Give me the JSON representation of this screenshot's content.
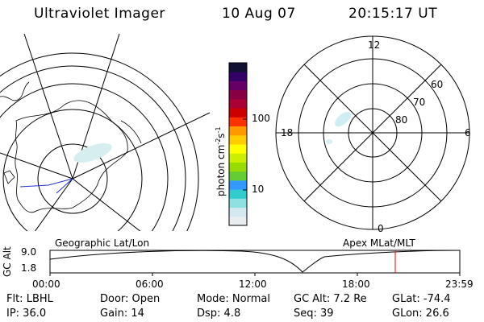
{
  "header": {
    "instrument": "Ultraviolet Imager",
    "date": "10 Aug 07",
    "time": "20:15:17 UT"
  },
  "colorbar": {
    "unit_label": "photon cm",
    "unit_exp1": "-2",
    "unit_mid": "s",
    "unit_exp2": "-1",
    "ticks": [
      "100",
      "10"
    ],
    "colors": [
      "#e9edf0",
      "#d4e8f0",
      "#8fe0e0",
      "#33cccc",
      "#3399ff",
      "#66cc33",
      "#99dd00",
      "#ccee00",
      "#ffff00",
      "#ffcc00",
      "#ff9900",
      "#ff3300",
      "#cc0000",
      "#aa0033",
      "#880044",
      "#660066",
      "#330066",
      "#111133"
    ]
  },
  "left_panel": {
    "label": "Geographic Lat/Lon"
  },
  "right_panel": {
    "label": "Apex MLat/MLT",
    "mlt_labels": [
      "12",
      "18",
      "6",
      "0"
    ],
    "lat_labels": [
      "60",
      "70",
      "80"
    ]
  },
  "altitude_plot": {
    "ylabel": "GC Alt",
    "yticks": [
      "9.0",
      "1.8"
    ],
    "xticks": [
      "00:00",
      "06:00",
      "12:00",
      "18:00",
      "23:59"
    ]
  },
  "status": {
    "filter": "Flt: LBHL",
    "door": "Door: Open",
    "mode": "Mode: Normal",
    "gc_alt": "GC Alt: 7.2 Re",
    "glat": "GLat: -74.4",
    "ip": "IP: 36.0",
    "gain": "Gain: 14",
    "dsp": "Dsp:     4.8",
    "seq": "Seq: 39",
    "glon": "GLon:  26.6"
  }
}
